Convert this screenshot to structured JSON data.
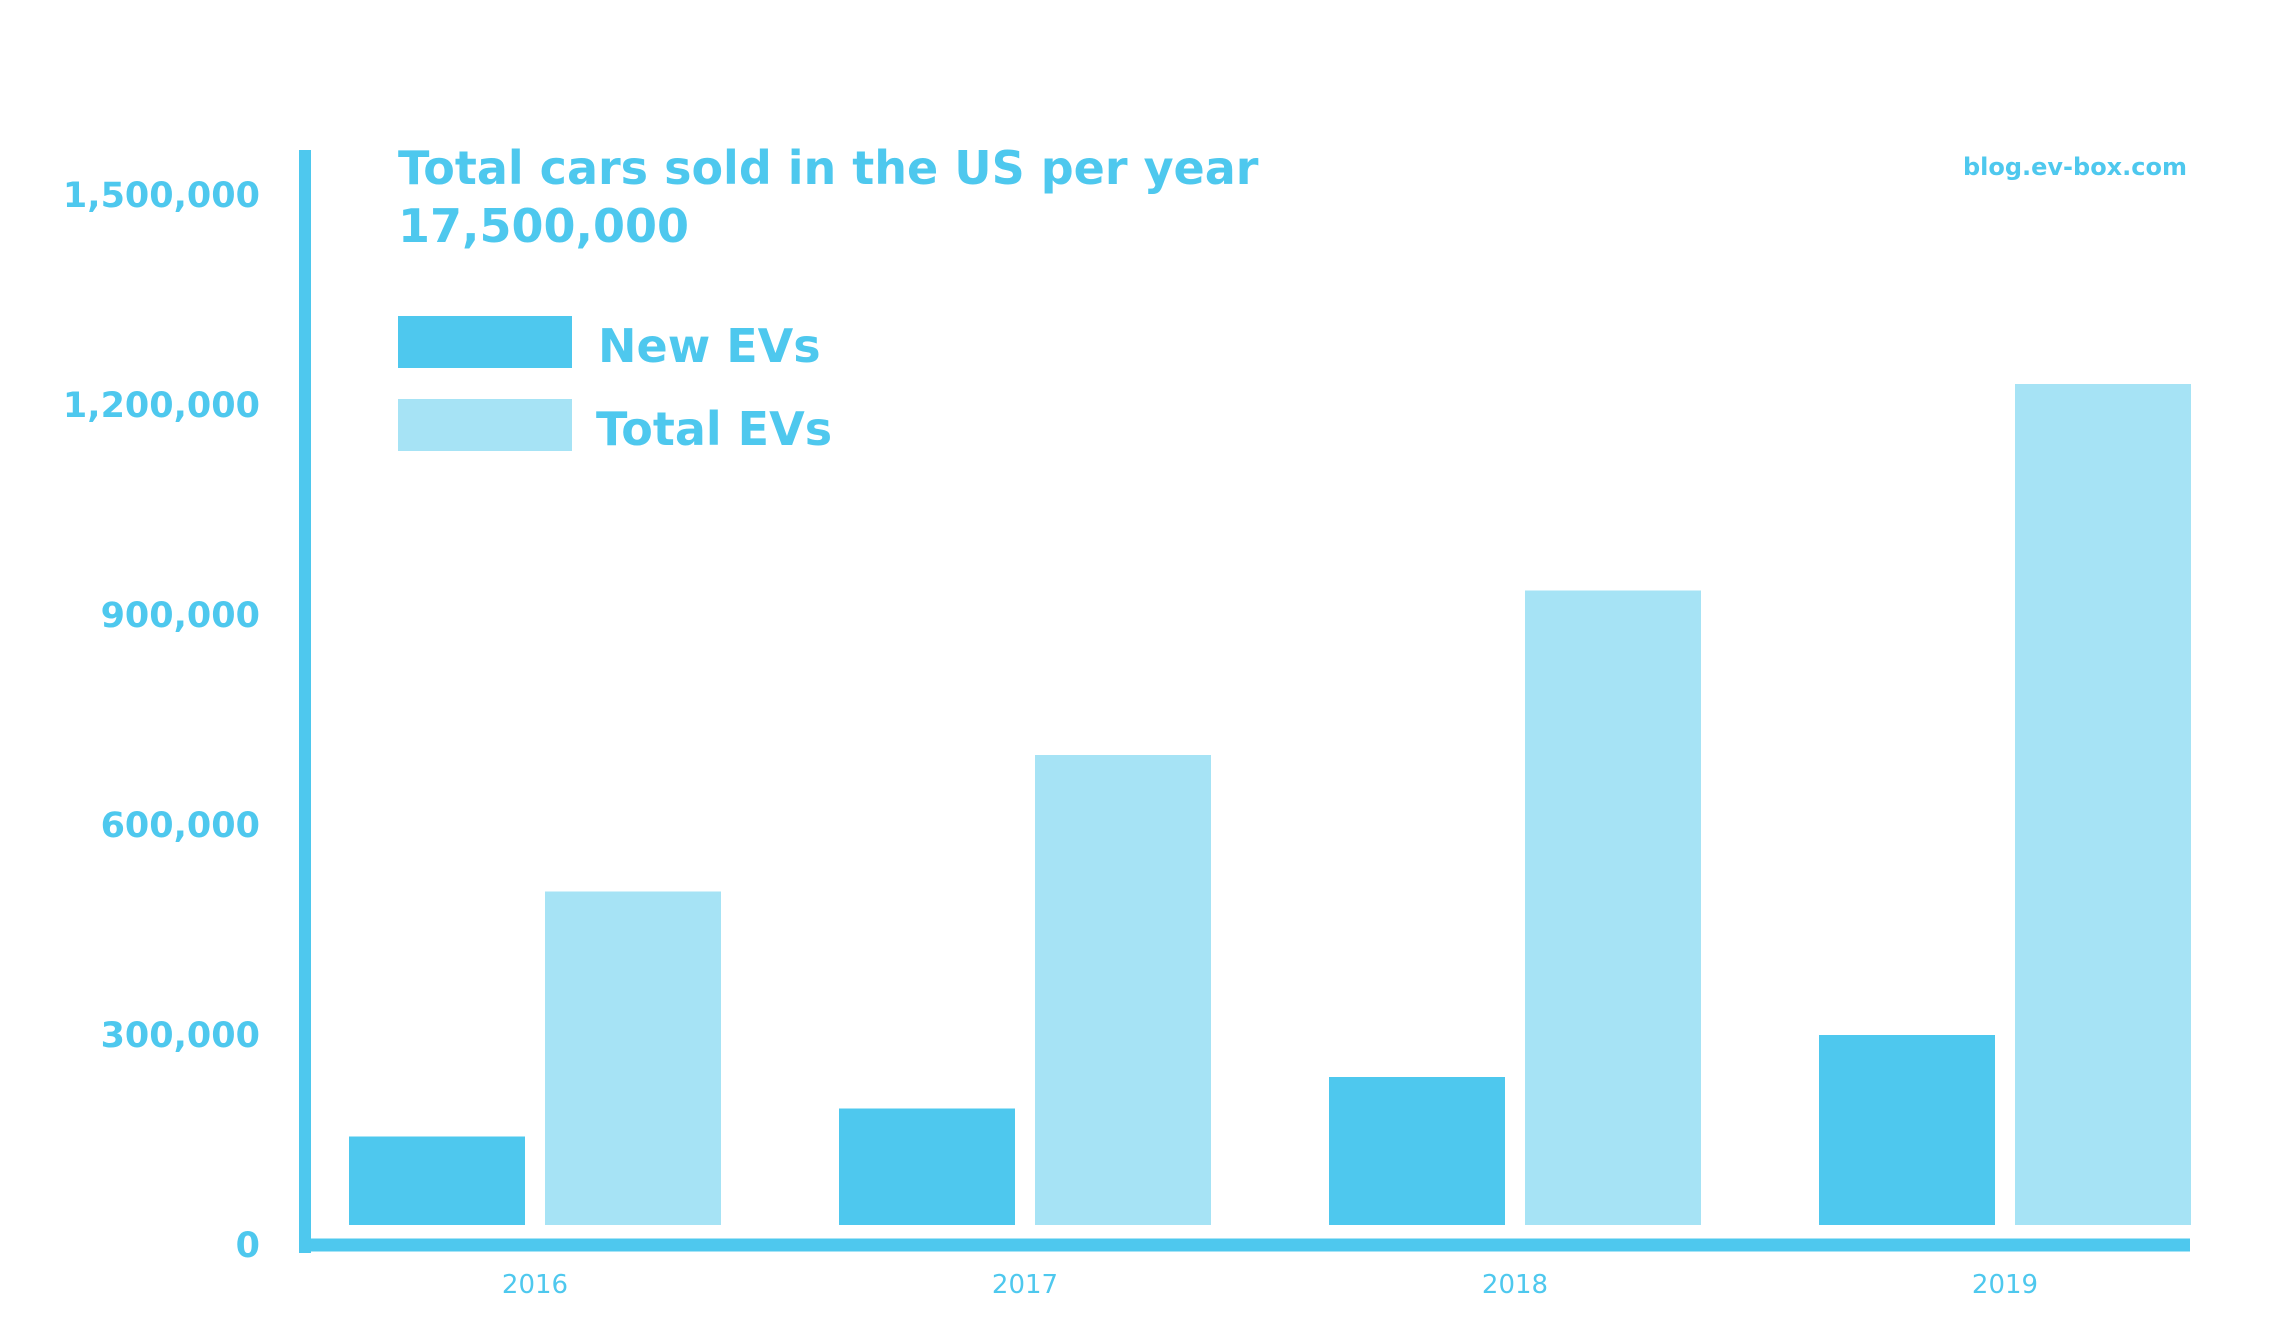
{
  "chart_data": {
    "type": "bar",
    "title": "Total cars sold in the US per year",
    "subtitle": "17,500,000",
    "source": "blog.ev-box.com",
    "categories": [
      "2016",
      "2017",
      "2018",
      "2019"
    ],
    "series": [
      {
        "name": "New EVs",
        "values": [
          155000,
          195000,
          240000,
          300000
        ],
        "color": "#4ec8ee"
      },
      {
        "name": "Total EVs",
        "values": [
          505000,
          700000,
          935000,
          1230000
        ],
        "color": "#a6e3f5"
      }
    ],
    "yticks": [
      "0",
      "300,000",
      "600,000",
      "900,000",
      "1,200,000",
      "1,500,000"
    ],
    "ylim": [
      0,
      1500000
    ],
    "grid": false,
    "legend_position": "top-left",
    "axis_color": "#4ec8ee"
  }
}
